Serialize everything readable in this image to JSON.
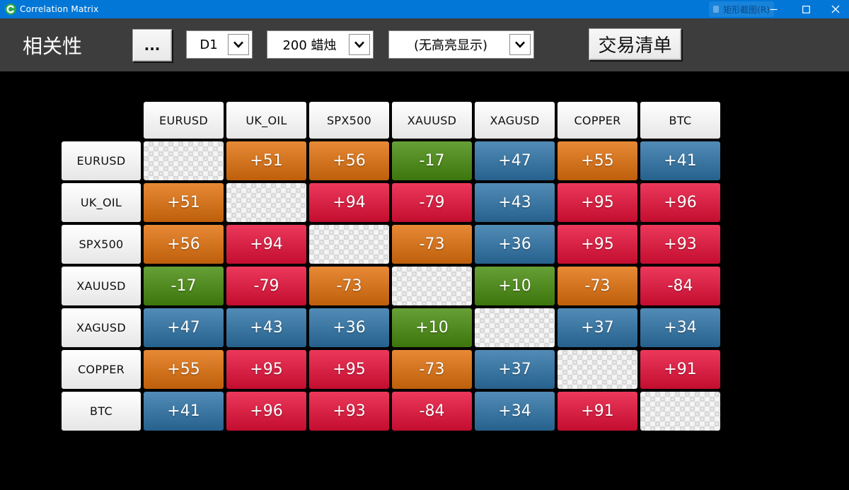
{
  "window": {
    "title": "Correlation Matrix",
    "ghost_overlay_text": "矩形截图(R)"
  },
  "toolbar": {
    "app_title": "相关性",
    "more_button_label": "...",
    "timeframe_value": "D1",
    "candles_value": "200 蜡烛",
    "highlight_value": "(无高亮显示)",
    "trade_list_label": "交易清单"
  },
  "matrix": {
    "symbols": [
      "EURUSD",
      "UK_OIL",
      "SPX500",
      "XAUUSD",
      "XAGUSD",
      "COPPER",
      "BTC"
    ],
    "values": [
      [
        null,
        51,
        56,
        -17,
        47,
        55,
        41
      ],
      [
        51,
        null,
        94,
        -79,
        43,
        95,
        96
      ],
      [
        56,
        94,
        null,
        -73,
        36,
        95,
        93
      ],
      [
        -17,
        -79,
        -73,
        null,
        10,
        -73,
        -84
      ],
      [
        47,
        43,
        36,
        10,
        null,
        37,
        34
      ],
      [
        55,
        95,
        95,
        -73,
        37,
        null,
        91
      ],
      [
        41,
        96,
        93,
        -84,
        34,
        91,
        null
      ]
    ],
    "colors": {
      "green": "#478c0e",
      "blue": "#2e74a8",
      "orange": "#e2710d",
      "red": "#e81039"
    },
    "color_rules": {
      "green": "abs(value) < 30",
      "blue": "30 <= abs(value) < 50",
      "orange": "50 <= abs(value) < 75",
      "red": "abs(value) >= 75"
    }
  }
}
